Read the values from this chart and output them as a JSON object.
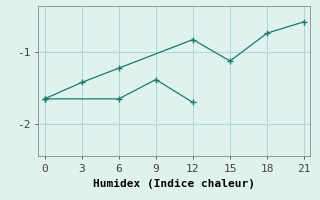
{
  "line1_x": [
    0,
    3,
    6,
    12,
    15,
    18,
    21
  ],
  "line1_y": [
    -1.65,
    -1.42,
    -1.22,
    -0.82,
    -1.12,
    -0.73,
    -0.57
  ],
  "line2_x": [
    0,
    6,
    9,
    12
  ],
  "line2_y": [
    -1.65,
    -1.65,
    -1.38,
    -1.7
  ],
  "line_color": "#1a7a6e",
  "bg_color": "#dff2ee",
  "grid_color": "#afd8d0",
  "xlabel": "Humidex (Indice chaleur)",
  "xticks": [
    0,
    3,
    6,
    9,
    12,
    15,
    18,
    21
  ],
  "yticks": [
    -2,
    -1
  ],
  "xlim": [
    -0.5,
    21.5
  ],
  "ylim": [
    -2.45,
    -0.35
  ],
  "xlabel_fontsize": 8,
  "tick_fontsize": 8
}
